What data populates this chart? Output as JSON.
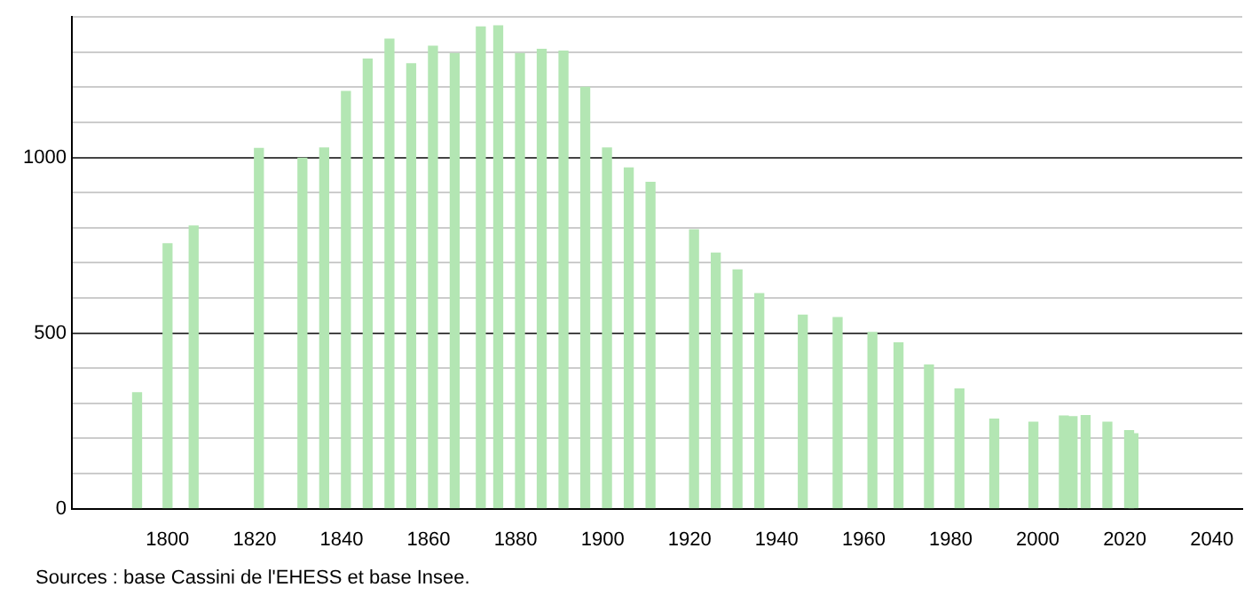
{
  "chart_data": {
    "type": "bar",
    "x": [
      1793,
      1800,
      1806,
      1821,
      1831,
      1836,
      1841,
      1846,
      1851,
      1856,
      1861,
      1866,
      1872,
      1876,
      1881,
      1886,
      1891,
      1896,
      1901,
      1906,
      1911,
      1921,
      1926,
      1931,
      1936,
      1946,
      1954,
      1962,
      1968,
      1975,
      1982,
      1990,
      1999,
      2006,
      2008,
      2011,
      2016,
      2021,
      2022
    ],
    "values": [
      330,
      754,
      805,
      1026,
      998,
      1027,
      1188,
      1280,
      1337,
      1267,
      1317,
      1296,
      1372,
      1375,
      1296,
      1308,
      1303,
      1200,
      1027,
      970,
      929,
      794,
      728,
      680,
      612,
      551,
      544,
      502,
      472,
      409,
      341,
      255,
      246,
      264,
      262,
      265,
      246,
      222,
      213
    ],
    "color": "#b3e6b3",
    "xlim": [
      1778,
      2047
    ],
    "xticks": [
      1800,
      1820,
      1840,
      1860,
      1880,
      1900,
      1920,
      1940,
      1960,
      1980,
      2000,
      2020,
      2040
    ],
    "ylim": [
      0,
      1400
    ],
    "yticks": [
      0,
      {
        "value": 100,
        "label": null
      },
      {
        "value": 200,
        "label": null
      },
      {
        "value": 300,
        "label": null
      },
      {
        "value": 400,
        "label": null
      },
      500,
      {
        "value": 600,
        "label": null
      },
      {
        "value": 700,
        "label": null
      },
      {
        "value": 800,
        "label": null
      },
      {
        "value": 900,
        "label": null
      },
      1000,
      {
        "value": 1100,
        "label": null
      },
      {
        "value": 1200,
        "label": null
      },
      {
        "value": 1300,
        "label": null
      },
      {
        "value": 1400,
        "label": null
      }
    ],
    "grid": "y",
    "legend": false,
    "annotations": [
      "Sources : base Cassini de l'EHESS et base Insee."
    ]
  }
}
